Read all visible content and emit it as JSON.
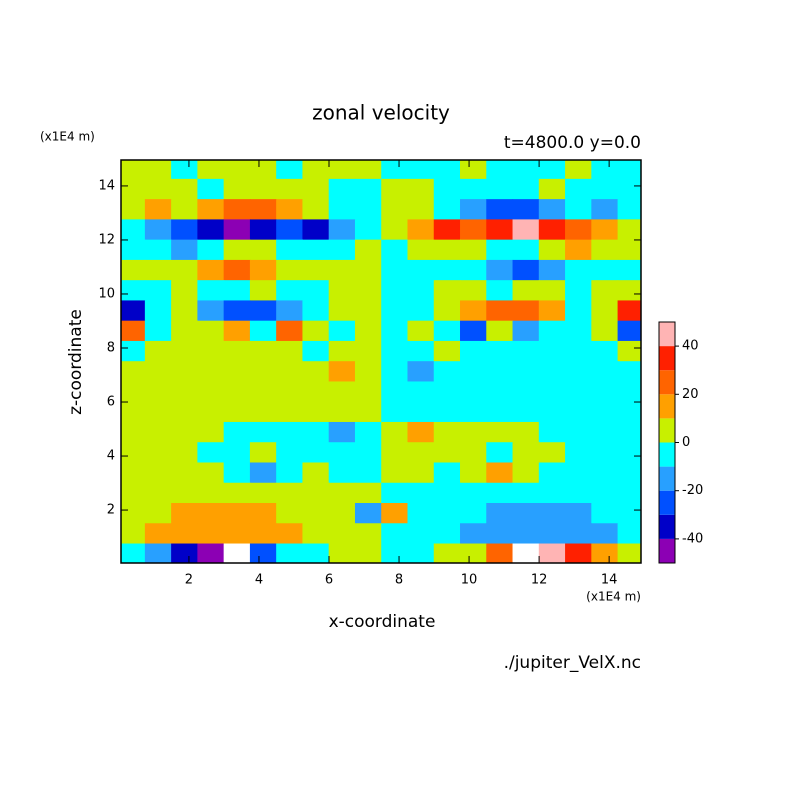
{
  "chart_data": {
    "type": "contour",
    "title": "zonal velocity",
    "subtitle": "t=4800.0 y=0.0",
    "x_label": "x-coordinate",
    "y_label": "z-coordinate",
    "x_unit": "(x1E4 m)",
    "y_unit": "(x1E4 m)",
    "source": "./jupiter_VelX.nc",
    "xlim": [
      0.06,
      14.91
    ],
    "ylim": [
      0.04,
      14.96
    ],
    "xticks": [
      2,
      4,
      6,
      8,
      10,
      12,
      14
    ],
    "yticks": [
      2,
      4,
      6,
      8,
      10,
      12,
      14
    ],
    "x": [
      0.375,
      1.125,
      1.875,
      2.625,
      3.375,
      4.125,
      4.875,
      5.625,
      6.375,
      7.125,
      7.875,
      8.625,
      9.375,
      10.125,
      10.875,
      11.625,
      12.375,
      13.125,
      13.875,
      14.625
    ],
    "y": [
      14.625,
      13.875,
      13.125,
      12.375,
      11.625,
      10.875,
      10.125,
      9.375,
      8.625,
      7.875,
      7.125,
      6.375,
      5.625,
      4.875,
      4.125,
      3.375,
      2.625,
      1.875,
      1.125,
      0.375
    ],
    "z": [
      [
        5,
        5,
        -5,
        5,
        5,
        5,
        -5,
        5,
        5,
        5,
        -5,
        -5,
        -5,
        5,
        -5,
        -5,
        -5,
        5,
        -5,
        -5
      ],
      [
        5,
        5,
        5,
        -5,
        5,
        5,
        5,
        5,
        -5,
        -5,
        5,
        5,
        -5,
        -5,
        -5,
        -5,
        5,
        -5,
        -5,
        -5
      ],
      [
        5,
        15,
        5,
        15,
        25,
        25,
        15,
        5,
        -5,
        -5,
        5,
        5,
        -5,
        -15,
        -25,
        -25,
        -15,
        -5,
        -15,
        -5
      ],
      [
        -5,
        -15,
        -25,
        -35,
        -45,
        -35,
        -25,
        -35,
        -15,
        -5,
        5,
        15,
        35,
        25,
        35,
        45,
        35,
        25,
        15,
        5
      ],
      [
        -5,
        -5,
        -15,
        -5,
        5,
        5,
        -5,
        -5,
        -5,
        5,
        -5,
        5,
        5,
        5,
        -5,
        -5,
        5,
        15,
        5,
        5
      ],
      [
        5,
        5,
        5,
        15,
        25,
        15,
        5,
        5,
        5,
        5,
        -5,
        -5,
        -5,
        -5,
        -15,
        -25,
        -15,
        -5,
        -5,
        -5
      ],
      [
        -5,
        -5,
        5,
        -5,
        -5,
        5,
        -5,
        -5,
        5,
        5,
        -5,
        -5,
        5,
        5,
        -5,
        5,
        5,
        -5,
        5,
        5
      ],
      [
        -35,
        -5,
        5,
        -15,
        -25,
        -25,
        -15,
        -5,
        5,
        5,
        -5,
        -5,
        5,
        15,
        25,
        25,
        15,
        -5,
        5,
        35
      ],
      [
        25,
        -5,
        5,
        5,
        15,
        -5,
        25,
        5,
        -5,
        5,
        -5,
        5,
        -5,
        -25,
        5,
        -15,
        -5,
        -5,
        5,
        -25
      ],
      [
        -5,
        5,
        5,
        5,
        5,
        5,
        5,
        -5,
        5,
        5,
        -5,
        -5,
        5,
        -5,
        -5,
        -5,
        -5,
        -5,
        -5,
        5
      ],
      [
        5,
        5,
        5,
        5,
        5,
        5,
        5,
        5,
        15,
        5,
        -5,
        -15,
        -5,
        -5,
        -5,
        -5,
        -5,
        -5,
        -5,
        -5
      ],
      [
        5,
        5,
        5,
        5,
        5,
        5,
        5,
        5,
        5,
        5,
        -5,
        -5,
        -5,
        -5,
        -5,
        -5,
        -5,
        -5,
        -5,
        -5
      ],
      [
        5,
        5,
        5,
        5,
        5,
        5,
        5,
        5,
        5,
        5,
        -5,
        -5,
        -5,
        -5,
        -5,
        -5,
        -5,
        -5,
        -5,
        -5
      ],
      [
        5,
        5,
        5,
        5,
        -5,
        -5,
        -5,
        -5,
        -15,
        -5,
        5,
        15,
        5,
        5,
        5,
        5,
        -5,
        -5,
        -5,
        -5
      ],
      [
        5,
        5,
        5,
        -5,
        -5,
        5,
        -5,
        -5,
        -5,
        -5,
        5,
        5,
        5,
        5,
        -5,
        5,
        5,
        -5,
        -5,
        -5
      ],
      [
        5,
        5,
        5,
        5,
        -5,
        -15,
        -5,
        5,
        -5,
        -5,
        5,
        5,
        -5,
        5,
        15,
        5,
        -5,
        -5,
        -5,
        -5
      ],
      [
        5,
        5,
        5,
        5,
        5,
        5,
        5,
        5,
        5,
        5,
        -5,
        -5,
        -5,
        -5,
        -5,
        -5,
        -5,
        -5,
        -5,
        -5
      ],
      [
        5,
        5,
        15,
        15,
        15,
        15,
        5,
        5,
        5,
        -15,
        15,
        -5,
        -5,
        -5,
        -15,
        -15,
        -15,
        -15,
        -5,
        -5
      ],
      [
        5,
        15,
        15,
        15,
        15,
        15,
        15,
        5,
        5,
        5,
        -5,
        -5,
        -5,
        -15,
        -15,
        -15,
        -15,
        -15,
        -15,
        -5
      ],
      [
        -5,
        -15,
        -35,
        -45,
        -55,
        -25,
        -5,
        -5,
        5,
        5,
        -5,
        -5,
        5,
        5,
        25,
        55,
        45,
        35,
        15,
        5
      ]
    ],
    "levels": [
      -50,
      -40,
      -30,
      -20,
      -10,
      0,
      10,
      20,
      30,
      40,
      50
    ],
    "colors": [
      "#8c00b4",
      "#0000c8",
      "#0050ff",
      "#28a0ff",
      "#00ffff",
      "#c8f000",
      "#ffa000",
      "#ff6400",
      "#ff2000",
      "#ffb4b4"
    ],
    "out_of_range_color": "#ffffff",
    "colorbar_ticks": [
      -40,
      -20,
      0,
      20,
      40
    ]
  }
}
